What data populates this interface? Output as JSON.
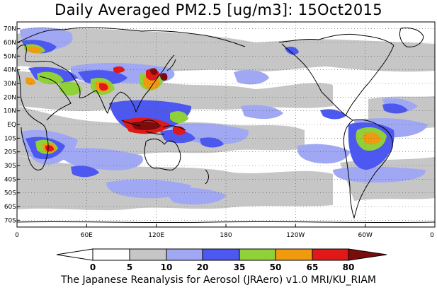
{
  "title": "Daily Averaged PM2.5 [ug/m3]: 15Oct2015",
  "credit": "The Japanese Reanalysis for Aerosol (JRAero) v1.0 MRI/KU_RIAM",
  "map": {
    "projection": "cylindrical-equidistant",
    "lon_range": [
      0,
      360
    ],
    "lat_range": [
      -75,
      75
    ],
    "grid": "dotted",
    "lat_labels": [
      "70N",
      "60N",
      "50N",
      "40N",
      "30N",
      "20N",
      "10N",
      "EQ",
      "10S",
      "20S",
      "30S",
      "40S",
      "50S",
      "60S",
      "70S"
    ],
    "lat_values": [
      70,
      60,
      50,
      40,
      30,
      20,
      10,
      0,
      -10,
      -20,
      -30,
      -40,
      -50,
      -60,
      -70
    ],
    "lon_labels": [
      "0",
      "60E",
      "120E",
      "180",
      "120W",
      "60W",
      "0"
    ],
    "lon_values": [
      0,
      60,
      120,
      180,
      240,
      300,
      360
    ]
  },
  "legend": {
    "labels": [
      "0",
      "5",
      "10",
      "20",
      "35",
      "50",
      "65",
      "80"
    ],
    "colors": [
      "#ffffff",
      "#c6c6c6",
      "#a0a8f4",
      "#4c58f0",
      "#90d038",
      "#f09a10",
      "#e01818",
      "#7a0c0c"
    ]
  }
}
